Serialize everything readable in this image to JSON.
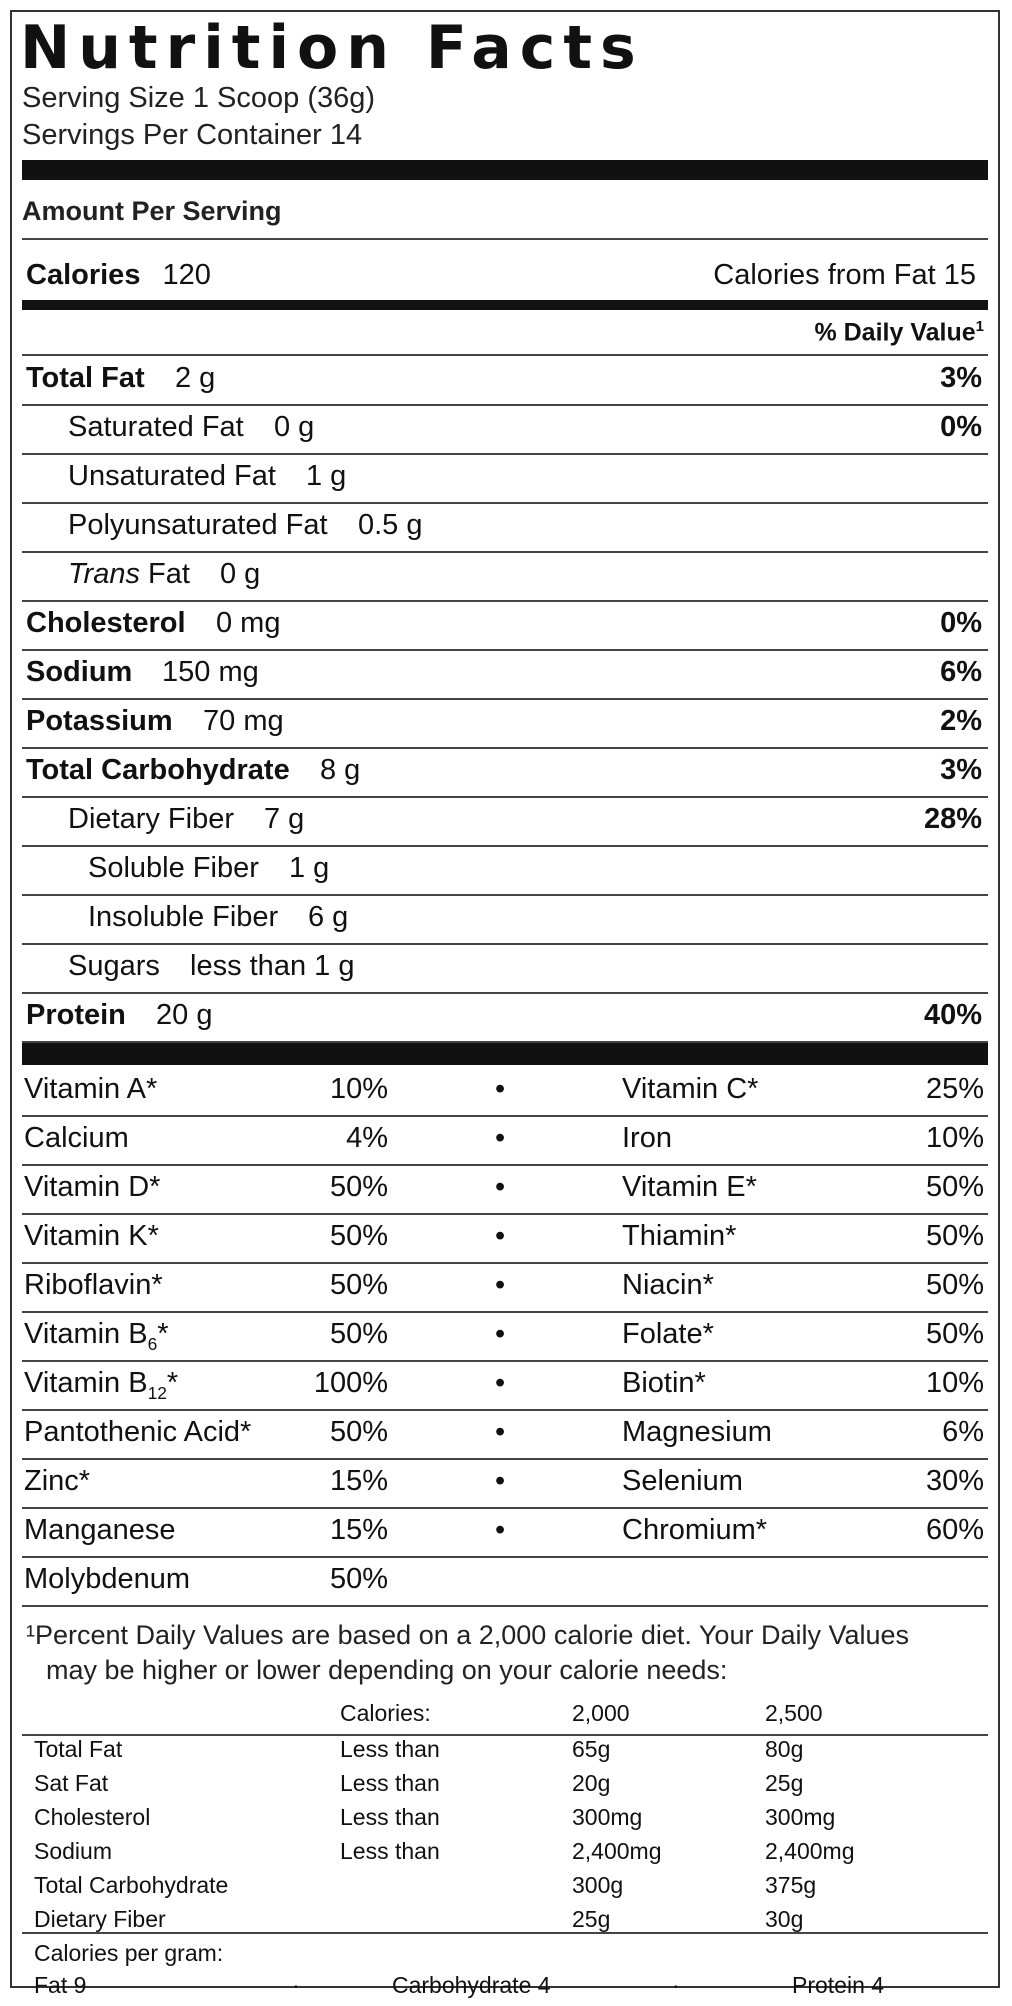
{
  "title": "Nutrition Facts",
  "serving_size": "Serving Size 1 Scoop (36g)",
  "servings_per_container": "Servings Per Container 14",
  "amount_per_serving": "Amount Per Serving",
  "calories_label": "Calories",
  "calories_value": "120",
  "calories_from_fat": "Calories from Fat 15",
  "daily_value_header": "% Daily Value",
  "nutrients": [
    {
      "name": "Total Fat",
      "amount": "2 g",
      "pct": "3%",
      "bold": true,
      "indent": 0
    },
    {
      "name": "Saturated Fat",
      "amount": "0 g",
      "pct": "0%",
      "bold": false,
      "indent": 1
    },
    {
      "name": "Unsaturated Fat",
      "amount": "1 g",
      "pct": "",
      "bold": false,
      "indent": 1
    },
    {
      "name": "Polyunsaturated Fat",
      "amount": "0.5 g",
      "pct": "",
      "bold": false,
      "indent": 1
    },
    {
      "name": "Trans Fat",
      "amount": "0 g",
      "pct": "",
      "bold": false,
      "indent": 1,
      "italic_word": "Trans"
    },
    {
      "name": "Cholesterol",
      "amount": "0 mg",
      "pct": "0%",
      "bold": true,
      "indent": 0
    },
    {
      "name": "Sodium",
      "amount": "150 mg",
      "pct": "6%",
      "bold": true,
      "indent": 0
    },
    {
      "name": "Potassium",
      "amount": "70 mg",
      "pct": "2%",
      "bold": true,
      "indent": 0
    },
    {
      "name": "Total Carbohydrate",
      "amount": "8 g",
      "pct": "3%",
      "bold": true,
      "indent": 0
    },
    {
      "name": "Dietary Fiber",
      "amount": "7 g",
      "pct": "28%",
      "bold": false,
      "indent": 1
    },
    {
      "name": "Soluble Fiber",
      "amount": "1 g",
      "pct": "",
      "bold": false,
      "indent": 2
    },
    {
      "name": "Insoluble Fiber",
      "amount": "6 g",
      "pct": "",
      "bold": false,
      "indent": 2
    },
    {
      "name": "Sugars",
      "amount": "less than 1 g",
      "pct": "",
      "bold": false,
      "indent": 1
    },
    {
      "name": "Protein",
      "amount": "20 g",
      "pct": "40%",
      "bold": true,
      "indent": 0
    }
  ],
  "vitamins": [
    {
      "left_name": "Vitamin A*",
      "left_pct": "10%",
      "right_name": "Vitamin C*",
      "right_pct": "25%"
    },
    {
      "left_name": "Calcium",
      "left_pct": "4%",
      "right_name": "Iron",
      "right_pct": "10%"
    },
    {
      "left_name": "Vitamin D*",
      "left_pct": "50%",
      "right_name": "Vitamin E*",
      "right_pct": "50%"
    },
    {
      "left_name": "Vitamin K*",
      "left_pct": "50%",
      "right_name": "Thiamin*",
      "right_pct": "50%"
    },
    {
      "left_name": "Riboflavin*",
      "left_pct": "50%",
      "right_name": "Niacin*",
      "right_pct": "50%"
    },
    {
      "left_name": "Vitamin B6*",
      "left_pct": "50%",
      "right_name": "Folate*",
      "right_pct": "50%"
    },
    {
      "left_name": "Vitamin B12*",
      "left_pct": "100%",
      "right_name": "Biotin*",
      "right_pct": "10%"
    },
    {
      "left_name": "Pantothenic Acid*",
      "left_pct": "50%",
      "right_name": "Magnesium",
      "right_pct": "6%"
    },
    {
      "left_name": "Zinc*",
      "left_pct": "15%",
      "right_name": "Selenium",
      "right_pct": "30%"
    },
    {
      "left_name": "Manganese",
      "left_pct": "15%",
      "right_name": "Chromium*",
      "right_pct": "60%"
    },
    {
      "left_name": "Molybdenum",
      "left_pct": "50%",
      "right_name": "",
      "right_pct": ""
    }
  ],
  "bullet": "•",
  "footnote_line1": "¹Percent Daily Values are based on a 2,000 calorie diet. Your Daily Values",
  "footnote_line2": "may be higher or lower depending on your calorie needs:",
  "dv_table": {
    "header": [
      "",
      "Calories:",
      "2,000",
      "2,500"
    ],
    "rows": [
      [
        "Total Fat",
        "Less than",
        "65g",
        "80g"
      ],
      [
        "Sat Fat",
        "Less than",
        "20g",
        "25g"
      ],
      [
        "Cholesterol",
        "Less than",
        "300mg",
        "300mg"
      ],
      [
        "Sodium",
        "Less than",
        "2,400mg",
        "2,400mg"
      ],
      [
        "Total Carbohydrate",
        "",
        "300g",
        "375g"
      ],
      [
        "Dietary Fiber",
        "",
        "25g",
        "30g"
      ]
    ]
  },
  "calories_per_gram": "Calories per gram:",
  "cpg_fat": "Fat 9",
  "cpg_carb": "Carbohydrate 4",
  "cpg_protein": "Protein 4",
  "cpg_sep": "·"
}
